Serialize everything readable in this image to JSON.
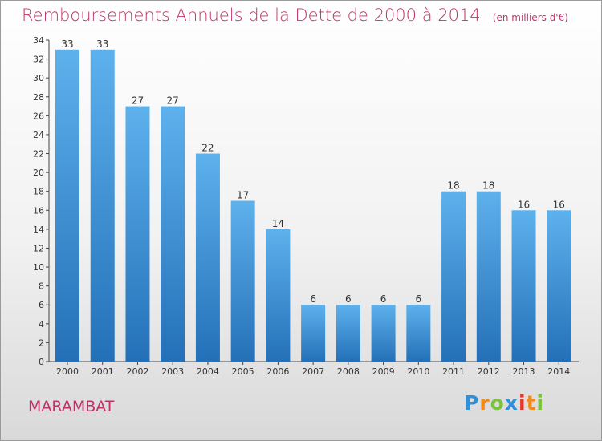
{
  "chart_data": {
    "type": "bar",
    "title": "Remboursements Annuels de la Dette de 2000 à 2014",
    "unit_note": "(en milliers d'€)",
    "categories": [
      "2000",
      "2001",
      "2002",
      "2003",
      "2004",
      "2005",
      "2006",
      "2007",
      "2008",
      "2009",
      "2010",
      "2011",
      "2012",
      "2013",
      "2014"
    ],
    "values": [
      33,
      33,
      27,
      27,
      22,
      17,
      14,
      6,
      6,
      6,
      6,
      18,
      18,
      16,
      16
    ],
    "ylim": [
      0,
      34
    ],
    "yticks": [
      0,
      2,
      4,
      6,
      8,
      10,
      12,
      14,
      16,
      18,
      20,
      22,
      24,
      26,
      28,
      30,
      32,
      34
    ],
    "grid": false,
    "bar_color": "#3d8fd6"
  },
  "city": "MARAMBAT",
  "logo": {
    "letters": [
      "P",
      "r",
      "o",
      "x",
      "i",
      "t",
      "i"
    ],
    "colors": [
      "#2f8fd8",
      "#f28a1b",
      "#7cc241",
      "#2f8fd8",
      "#e8372a",
      "#f28a1b",
      "#7cc241"
    ]
  }
}
